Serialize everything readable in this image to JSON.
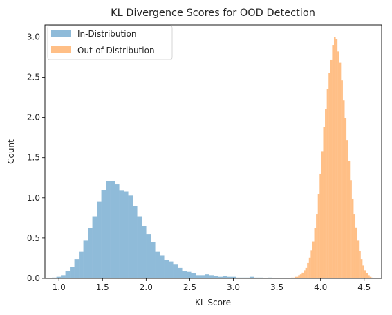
{
  "chart_data": {
    "type": "histogram",
    "title": "KL Divergence Scores for OOD Detection",
    "xlabel": "KL Score",
    "ylabel": "Count",
    "xlim": [
      0.84,
      4.7
    ],
    "ylim": [
      0,
      3.15
    ],
    "xticks": [
      1.0,
      1.5,
      2.0,
      2.5,
      3.0,
      3.5,
      4.0,
      4.5
    ],
    "xtick_labels": [
      "1.0",
      "1.5",
      "2.0",
      "2.5",
      "3.0",
      "3.5",
      "4.0",
      "4.5"
    ],
    "yticks": [
      0.0,
      0.5,
      1.0,
      1.5,
      2.0,
      2.5,
      3.0
    ],
    "ytick_labels": [
      "0.0",
      "0.5",
      "1.0",
      "1.5",
      "2.0",
      "2.5",
      "3.0"
    ],
    "grid": false,
    "legend_position": "top-left",
    "series": [
      {
        "name": "In-Distribution",
        "color": "#1f77b4",
        "alpha": 0.5,
        "bin_start": 0.92,
        "bin_width": 0.0515,
        "counts": [
          0.01,
          0.02,
          0.04,
          0.09,
          0.14,
          0.24,
          0.33,
          0.47,
          0.62,
          0.77,
          0.95,
          1.1,
          1.21,
          1.21,
          1.17,
          1.09,
          1.08,
          1.03,
          0.9,
          0.77,
          0.65,
          0.55,
          0.45,
          0.33,
          0.28,
          0.23,
          0.21,
          0.17,
          0.13,
          0.09,
          0.08,
          0.06,
          0.04,
          0.04,
          0.05,
          0.04,
          0.03,
          0.02,
          0.03,
          0.02,
          0.02,
          0.01,
          0.01,
          0.01,
          0.02,
          0.01,
          0.01,
          0.0,
          0.01,
          0.0,
          0.0,
          0.0,
          0.0,
          0.0,
          0.0
        ]
      },
      {
        "name": "Out-of-Distribution",
        "color": "#ff7f0e",
        "alpha": 0.5,
        "bin_start": 3.62,
        "bin_width": 0.0205,
        "counts": [
          0.005,
          0.005,
          0.01,
          0.01,
          0.02,
          0.02,
          0.04,
          0.05,
          0.07,
          0.1,
          0.13,
          0.19,
          0.26,
          0.35,
          0.46,
          0.62,
          0.8,
          1.05,
          1.3,
          1.58,
          1.88,
          2.1,
          2.35,
          2.55,
          2.72,
          2.9,
          3.0,
          2.97,
          2.82,
          2.68,
          2.46,
          2.21,
          1.99,
          1.72,
          1.46,
          1.22,
          0.99,
          0.8,
          0.63,
          0.47,
          0.34,
          0.24,
          0.16,
          0.1,
          0.06,
          0.04,
          0.02,
          0.01,
          0.005,
          0.005
        ]
      }
    ]
  }
}
